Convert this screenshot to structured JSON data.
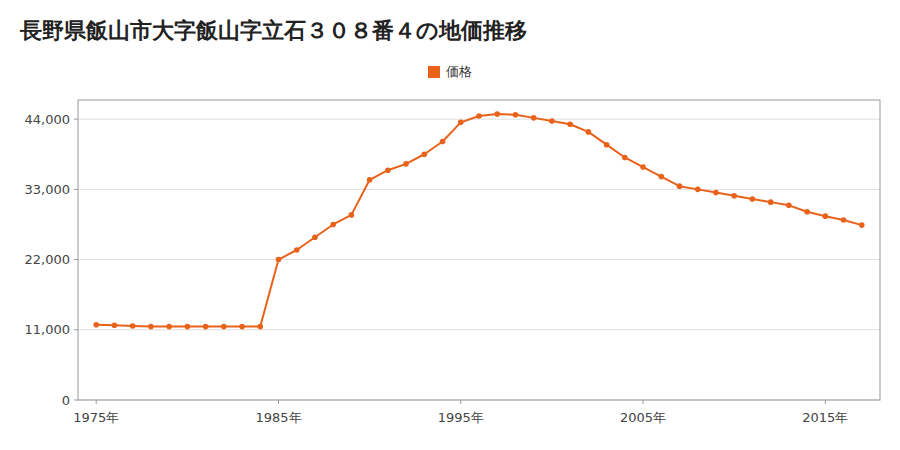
{
  "chart_data": {
    "type": "line",
    "title": "長野県飯山市大字飯山字立石３０８番４の地価推移",
    "x": [
      1975,
      1976,
      1977,
      1978,
      1979,
      1980,
      1981,
      1982,
      1983,
      1984,
      1985,
      1986,
      1987,
      1988,
      1989,
      1990,
      1991,
      1992,
      1993,
      1994,
      1995,
      1996,
      1997,
      1998,
      1999,
      2000,
      2001,
      2002,
      2003,
      2004,
      2005,
      2006,
      2007,
      2008,
      2009,
      2010,
      2011,
      2012,
      2013,
      2014,
      2015,
      2016,
      2017
    ],
    "series": [
      {
        "name": "価格",
        "color": "#e8621a",
        "marker": "circle",
        "values": [
          11800,
          11700,
          11600,
          11500,
          11500,
          11500,
          11500,
          11500,
          11500,
          11500,
          22000,
          23500,
          25500,
          27500,
          29000,
          34500,
          36000,
          37000,
          38500,
          40500,
          43500,
          44500,
          44800,
          44700,
          44200,
          43700,
          43200,
          42000,
          40000,
          38000,
          36500,
          35000,
          33500,
          33000,
          32500,
          32000,
          31500,
          31000,
          30500,
          29500,
          28800,
          28200,
          27400
        ]
      }
    ],
    "xlim": [
      1974,
      2018
    ],
    "xticks": [
      {
        "value": 1975,
        "label": "1975年"
      },
      {
        "value": 1985,
        "label": "1985年"
      },
      {
        "value": 1995,
        "label": "1995年"
      },
      {
        "value": 2005,
        "label": "2005年"
      },
      {
        "value": 2015,
        "label": "2015年"
      }
    ],
    "ylim": [
      0,
      47000
    ],
    "yticks": [
      0,
      {
        "value": 11000,
        "label": "11,000"
      },
      {
        "value": 22000,
        "label": "22,000"
      },
      {
        "value": 33000,
        "label": "33,000"
      },
      {
        "value": 44000,
        "label": "44,000"
      }
    ],
    "grid": true,
    "legend": "top"
  }
}
